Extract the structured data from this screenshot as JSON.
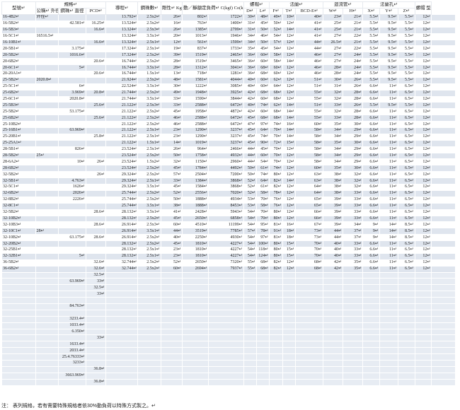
{
  "headers": {
    "model": "型號↵",
    "spec": "規格↵",
    "ball_dia": "鋼珠↵\n直徑",
    "shaft_dia": "公稱↵\n外徑↵",
    "pcd": "PCD↵",
    "lead": "導程↵",
    "turns": "鋼珠數↵",
    "stiffness": "剛性↵\nKgf/μm↵\nK↵",
    "load": "動／靜額定負荷↵\nC(kgf) Co(kgf)↵",
    "nut": "螺帽↵",
    "flange": "法蘭↵",
    "wiper": "迴流管↵",
    "holes": "法蘭孔↵",
    "notes": "螺帽\n型長↵",
    "sub": [
      "D↵",
      "L↵",
      "F↵",
      "T↵",
      "BCD-E↵",
      "W↵",
      "H↵",
      "X↵",
      "Y↵",
      "Z↵",
      "S↵"
    ]
  },
  "rows": [
    {
      "model": "16-4B2↵",
      "c1": "外徑↵",
      "c2": "",
      "c3": "",
      "lead": "13.792↵",
      "turns": "2.5x2↵",
      "k": "26↵",
      "C": "802↵",
      "Co": "1722↵",
      "D": "30↵",
      "L": "48↵",
      "F": "49↵",
      "T": "10↵",
      "BCD": "40↵",
      "W": "23↵",
      "H": "21↵",
      "X": "5.5↵",
      "Y": "9.5↵",
      "Z": "5.5↵",
      "S": "12↵"
    },
    {
      "model": "16-5B2↵",
      "c1": "",
      "c2": "42.581↵",
      "c3": "16.25↵",
      "lead": "13.524↵",
      "turns": "2.5x2↵",
      "k": "16↵",
      "C": "763↵",
      "Co": "1400↵",
      "D": "31↵",
      "L": "45↵",
      "F": "50↵",
      "T": "12↵",
      "BCD": "41↵",
      "W": "25↵",
      "H": "21↵",
      "X": "5.5↵",
      "Y": "9.5↵",
      "Z": "5.5↵",
      "S": "12↵"
    },
    {
      "model": "16-5B3↵",
      "c1": "",
      "c2": "",
      "c3": "16.6↵",
      "lead": "13.324↵",
      "turns": "2.5x3↵",
      "k": "26↵",
      "C": "1385↵",
      "Co": "2799↵",
      "D": "31↵",
      "L": "50↵",
      "F": "52↵",
      "T": "14↵",
      "BCD": "41↵",
      "W": "25↵",
      "H": "21↵",
      "X": "5.5↵",
      "Y": "9.5↵",
      "Z": "5.5↵",
      "S": "12↵"
    },
    {
      "model": "16-5C1↵",
      "c1": "16516.5↵",
      "c2": "",
      "c3": "",
      "lead": "13.324↵",
      "turns": "3.5x1↵",
      "k": "20↵",
      "C": "1013↵",
      "Co": "1946↵",
      "D": "34↵",
      "L": "46↵",
      "F": "54↵",
      "T": "12↵",
      "BCD": "41↵",
      "W": "27↵",
      "H": "22↵",
      "X": "5.5↵",
      "Y": "9.5↵",
      "Z": "5.5↵",
      "S": "12↵"
    },
    {
      "model": "16-10B1↵",
      "c1": "",
      "c2": "",
      "c3": "16.6↵",
      "lead": "13.324↵",
      "turns": "2.5x1↵",
      "k": "12↵",
      "C": "561↵",
      "Co": "1599↵",
      "D": "34↵",
      "L": "50↵",
      "F": "57↵",
      "T": "12↵",
      "BCD": "44↵",
      "W": "26.5↵",
      "H": "21↵",
      "X": "5.5↵",
      "Y": "9.5↵",
      "Z": "5.5↵",
      "S": "12↵"
    },
    {
      "model": "20-5B1↵",
      "c1": "",
      "c2": "3.175↵",
      "c3": "",
      "lead": "17.324↵",
      "turns": "2.5x1↵",
      "k": "19↵",
      "C": "837↵",
      "Co": "1733↵",
      "D": "35↵",
      "L": "45↵",
      "F": "54↵",
      "T": "12↵",
      "BCD": "44↵",
      "W": "27↵",
      "H": "22↵",
      "X": "5.5↵",
      "Y": "9.5↵",
      "Z": "5.5↵",
      "S": "12↵"
    },
    {
      "model": "20-5B2↵",
      "c1": "",
      "c2": "1016.6↵",
      "c3": "",
      "lead": "17.324↵",
      "turns": "2.5x2↵",
      "k": "39↵",
      "C": "1519↵",
      "Co": "2465↵",
      "D": "36↵",
      "L": "60↵",
      "F": "58↵",
      "T": "12↵",
      "BCD": "46↵",
      "W": "27↵",
      "H": "24↵",
      "X": "5.5↵",
      "Y": "9.5↵",
      "Z": "5.5↵",
      "S": "12↵"
    },
    {
      "model": "20-6B2↵",
      "c1": "",
      "c2": "",
      "c3": "20.6↵",
      "lead": "16.744↵",
      "turns": "2.5x2↵",
      "k": "28↵",
      "C": "1519↵",
      "Co": "3465↵",
      "D": "36↵",
      "L": "60↵",
      "F": "58↵",
      "T": "14↵",
      "BCD": "46↵",
      "W": "27↵",
      "H": "24↵",
      "X": "5.5↵",
      "Y": "9.5↵",
      "Z": "5.5↵",
      "S": "12↵"
    },
    {
      "model": "20-6C1↵",
      "c1": "",
      "c2": "5↵",
      "c3": "",
      "lead": "16.744↵",
      "turns": "3.5x1↵",
      "k": "28↵",
      "C": "1312↵",
      "Co": "3041↵",
      "D": "36↵",
      "L": "68↵",
      "F": "60↵",
      "T": "12↵",
      "BCD": "46↵",
      "W": "28↵",
      "H": "24↵",
      "X": "5.5↵",
      "Y": "9.5↵",
      "Z": "5.5↵",
      "S": "12↵"
    },
    {
      "model": "20-20A1↵",
      "c1": "",
      "c2": "",
      "c3": "20.6↵",
      "lead": "16.744↵",
      "turns": "1.5x1↵",
      "k": "13↵",
      "C": "718↵",
      "Co": "1281↵",
      "D": "36↵",
      "L": "68↵",
      "F": "60↵",
      "T": "12↵",
      "BCD": "46↵",
      "W": "28↵",
      "H": "24↵",
      "X": "5.5↵",
      "Y": "9.5↵",
      "Z": "5.5↵",
      "S": "12↵"
    },
    {
      "model": "25-5B2↵",
      "c1": "2020.8↵",
      "c2": "",
      "c3": "",
      "lead": "21.924↵",
      "turns": "2.5x2↵",
      "k": "48↵",
      "C": "1581↵",
      "Co": "4044↵",
      "D": "40↵",
      "L": "60↵",
      "F": "62↵",
      "T": "12↵",
      "BCD": "51↵",
      "W": "30↵",
      "H": "26↵",
      "X": "5.5↵",
      "Y": "9.5↵",
      "Z": "5.5↵",
      "S": "12↵"
    },
    {
      "model": "25-5C1↵",
      "c1": "",
      "c2": "6↵",
      "c3": "",
      "lead": "22.524↵",
      "turns": "3.5x1↵",
      "k": "30↵",
      "C": "1222↵",
      "Co": "3085↵",
      "D": "40↵",
      "L": "60↵",
      "F": "64↵",
      "T": "12↵",
      "BCD": "51↵",
      "W": "31↵",
      "H": "26↵",
      "X": "6.6↵",
      "Y": "11↵",
      "Z": "6.5↵",
      "S": "12↵"
    },
    {
      "model": "25-6B2↵",
      "c1": "",
      "c2": "3.969↵",
      "c3": "20.8↵",
      "lead": "21.744↵",
      "turns": "2.5x2↵",
      "k": "49↵",
      "C": "1948↵",
      "Co": "3925↵",
      "D": "42↵",
      "L": "68↵",
      "F": "68↵",
      "T": "12↵",
      "BCD": "55↵",
      "W": "32↵",
      "H": "28↵",
      "X": "6.6↵",
      "Y": "11↵",
      "Z": "6.5↵",
      "S": "12↵"
    },
    {
      "model": "25-6C1↵",
      "c1": "",
      "c2": "2020.8↵",
      "c3": "",
      "lead": "21.744↵",
      "turns": "3.5x1↵",
      "k": "33↵",
      "C": "1590↵",
      "Co": "3844↵",
      "D": "42↵",
      "L": "60↵",
      "F": "68↵",
      "T": "12↵",
      "BCD": "55↵",
      "W": "32↵",
      "H": "28↵",
      "X": "6.6↵",
      "Y": "11↵",
      "Z": "6.5↵",
      "S": "12↵"
    },
    {
      "model": "25-5B3↵",
      "c1": "",
      "c2": "",
      "c3": "25.6↵",
      "lead": "21.122↵",
      "turns": "2.5x3↵",
      "k": "33↵",
      "C": "2588↵",
      "Co": "6472↵",
      "D": "40↵",
      "L": "74↵",
      "F": "62↵",
      "T": "14↵",
      "BCD": "51↵",
      "W": "33↵",
      "H": "26↵",
      "X": "5.5↵",
      "Y": "9.5↵",
      "Z": "5.5↵",
      "S": "12↵"
    },
    {
      "model": "25-5B2↵",
      "c1": "",
      "c2": "53.175↵",
      "c3": "",
      "lead": "21.122↵",
      "turns": "2.5x2↵",
      "k": "45↵",
      "C": "1958↵",
      "Co": "4872↵",
      "D": "42↵",
      "L": "60↵",
      "F": "68↵",
      "T": "14↵",
      "BCD": "55↵",
      "W": "32↵",
      "H": "28↵",
      "X": "6.6↵",
      "Y": "11↵",
      "Z": "6.5↵",
      "S": "12↵"
    },
    {
      "model": "25-6B2↵",
      "c1": "",
      "c2": "",
      "c3": "25.6↵",
      "lead": "21.122↵",
      "turns": "2.5x2↵",
      "k": "46↵",
      "C": "2588↵",
      "Co": "6472↵",
      "D": "45↵",
      "L": "68↵",
      "F": "68↵",
      "T": "14↵",
      "BCD": "55↵",
      "W": "33↵",
      "H": "28↵",
      "X": "6.6↵",
      "Y": "11↵",
      "Z": "6.5↵",
      "S": "12↵"
    },
    {
      "model": "25-10B2↵",
      "c1": "",
      "c2": "",
      "c3": "",
      "lead": "21.122↵",
      "turns": "2.5x2↵",
      "k": "46↵",
      "C": "2588↵",
      "Co": "6472↵",
      "D": "47↵",
      "L": "97↵",
      "F": "74↵",
      "T": "16↵",
      "BCD": "60↵",
      "W": "35↵",
      "H": "30↵",
      "X": "6.6↵",
      "Y": "11↵",
      "Z": "6.5↵",
      "S": "12↵"
    },
    {
      "model": "25-16B1↵",
      "c1": "",
      "c2": "63.969↵",
      "c3": "",
      "lead": "21.122↵",
      "turns": "2.5x1↵",
      "k": "23↵",
      "C": "1290↵",
      "Co": "3237↵",
      "D": "45↵",
      "L": "64↵",
      "F": "70↵",
      "T": "14↵",
      "BCD": "58↵",
      "W": "34↵",
      "H": "29↵",
      "X": "6.6↵",
      "Y": "11↵",
      "Z": "6.5↵",
      "S": "12↵"
    },
    {
      "model": "25-20B1↵",
      "c1": "",
      "c2": "",
      "c3": "25.8↵",
      "lead": "21.122↵",
      "turns": "2.5x1↵",
      "k": "23↵",
      "C": "1290↵",
      "Co": "3237↵",
      "D": "45↵",
      "L": "74↵",
      "F": "70↵",
      "T": "14↵",
      "BCD": "58↵",
      "W": "34↵",
      "H": "29↵",
      "X": "6.6↵",
      "Y": "11↵",
      "Z": "6.5↵",
      "S": "12↵"
    },
    {
      "model": "25-25A1↵",
      "c1": "",
      "c2": "",
      "c3": "",
      "lead": "21.122↵",
      "turns": "1.5x1↵",
      "k": "14↵",
      "C": "1019↵",
      "Co": "3237↵",
      "D": "45↵",
      "L": "90↵",
      "F": "72↵",
      "T": "15↵",
      "BCD": "58↵",
      "W": "35↵",
      "H": "30↵",
      "X": "6.6↵",
      "Y": "11↵",
      "Z": "6.5↵",
      "S": "12↵"
    },
    {
      "model": "28-5B1↵",
      "c1": "",
      "c2": "826↵",
      "c3": "",
      "lead": "23.524↵",
      "turns": "2.5x1↵",
      "k": "26↵",
      "C": "964↵",
      "Co": "2466↵",
      "D": "44↵",
      "L": "45↵",
      "F": "70↵",
      "T": "12↵",
      "BCD": "58↵",
      "W": "34↵",
      "H": "29↵",
      "X": "6.6↵",
      "Y": "11↵",
      "Z": "6.5↵",
      "S": "12↵"
    },
    {
      "model": "28-5B2↵",
      "c1": "25↵",
      "c2": "",
      "c3": "",
      "lead": "23.524↵",
      "turns": "2.5x2↵",
      "k": "50↵",
      "C": "1758↵",
      "Co": "4932↵",
      "D": "44↵",
      "L": "60↵",
      "F": "70↵",
      "T": "12↵",
      "BCD": "58↵",
      "W": "34↵",
      "H": "29↵",
      "X": "6.6↵",
      "Y": "11↵",
      "Z": "6.5↵",
      "S": "12↵"
    },
    {
      "model": "28-6A2↵",
      "c1": "",
      "c2": "10↵",
      "c3": "26↵",
      "lead": "23.524↵",
      "turns": "1.5x2↵",
      "k": "32↵",
      "C": "1150↵",
      "Co": "2960↵",
      "D": "44↵",
      "L": "54↵",
      "F": "70↵",
      "T": "12↵",
      "BCD": "58↵",
      "W": "34↵",
      "H": "29↵",
      "X": "6.6↵",
      "Y": "11↵",
      "Z": "6.5↵",
      "S": "12↵"
    },
    {
      "model": "28-6B2↵",
      "c1": "",
      "c2": "",
      "c3": "",
      "lead": "23.524↵",
      "turns": "2.5x2↵",
      "k": "45↵",
      "C": "1784↵",
      "Co": "4492↵",
      "D": "50↵",
      "L": "61↵",
      "F": "74↵",
      "T": "12↵",
      "BCD": "60↵",
      "W": "35↵",
      "H": "30↵",
      "X": "6.6↵",
      "Y": "11↵",
      "Z": "6.5↵",
      "S": "12↵"
    },
    {
      "model": "32-5B2↵",
      "c1": "",
      "c2": "",
      "c3": "26↵",
      "lead": "29.324↵",
      "turns": "2.5x2↵",
      "k": "57↵",
      "C": "2504↵",
      "Co": "7200↵",
      "D": "50↵",
      "L": "74↵",
      "F": "80↵",
      "T": "12↵",
      "BCD": "63↵",
      "W": "38↵",
      "H": "32↵",
      "X": "6.6↵",
      "Y": "11↵",
      "Z": "6.5↵",
      "S": "12↵"
    },
    {
      "model": "32-5B1↵",
      "c1": "",
      "c2": "4.763↵",
      "c3": "",
      "lead": "29.324↵",
      "turns": "2.5x1↵",
      "k": "33↵",
      "C": "1384↵",
      "Co": "3868↵",
      "D": "52↵",
      "L": "64↵",
      "F": "82↵",
      "T": "14↵",
      "BCD": "63↵",
      "W": "38↵",
      "H": "32↵",
      "X": "6.6↵",
      "Y": "11↵",
      "Z": "6.5↵",
      "S": "12↵"
    },
    {
      "model": "32-5C1↵",
      "c1": "",
      "c2": "1626↵",
      "c3": "",
      "lead": "29.324↵",
      "turns": "3.5x1↵",
      "k": "45↵",
      "C": "1584↵",
      "Co": "3868↵",
      "D": "52↵",
      "L": "61↵",
      "F": "82↵",
      "T": "12↵",
      "BCD": "64↵",
      "W": "38↵",
      "H": "32↵",
      "X": "6.6↵",
      "Y": "11↵",
      "Z": "6.5↵",
      "S": "12↵"
    },
    {
      "model": "32-6B2↵",
      "c1": "",
      "c2": "2026↵",
      "c3": "",
      "lead": "25.744↵",
      "turns": "2.5x2↵",
      "k": "52↵",
      "C": "2556↵",
      "Co": "7020↵",
      "D": "52↵",
      "L": "58↵",
      "F": "78↵",
      "T": "12↵",
      "BCD": "64↵",
      "W": "38↵",
      "H": "33↵",
      "X": "6.6↵",
      "Y": "11↵",
      "Z": "6.5↵",
      "S": "12↵"
    },
    {
      "model": "32-8B2↵",
      "c1": "",
      "c2": "2226↵",
      "c3": "",
      "lead": "25.744↵",
      "turns": "2.5x2↵",
      "k": "50↵",
      "C": "1888↵",
      "Co": "4934↵",
      "D": "53↵",
      "L": "70↵",
      "F": "76↵",
      "T": "12↵",
      "BCD": "65↵",
      "W": "39↵",
      "H": "33↵",
      "X": "6.6↵",
      "Y": "11↵",
      "Z": "6.5↵",
      "S": "12↵"
    },
    {
      "model": "32-8C1↵",
      "c1": "",
      "c2": "",
      "c3": "",
      "lead": "25.744↵",
      "turns": "3.5x1↵",
      "k": "38↵",
      "C": "1888↵",
      "Co": "8453↵",
      "D": "53↵",
      "L": "58↵",
      "F": "76↵",
      "T": "12↵",
      "BCD": "65↵",
      "W": "39↵",
      "H": "33↵",
      "X": "6.6↵",
      "Y": "11↵",
      "Z": "6.5↵",
      "S": "12↵"
    },
    {
      "model": "32-5B2↵",
      "c1": "",
      "c2": "",
      "c3": "28.6↵",
      "lead": "28.132↵",
      "turns": "3.5x1↵",
      "k": "41↵",
      "C": "2428↵",
      "Co": "5943↵",
      "D": "54↵",
      "L": "70↵",
      "F": "80↵",
      "T": "12↵",
      "BCD": "66↵",
      "W": "39↵",
      "H": "33↵",
      "X": "6.6↵",
      "Y": "11↵",
      "Z": "6.5↵",
      "S": "12↵"
    },
    {
      "model": "32-10B2↵",
      "c1": "",
      "c2": "",
      "c3": "",
      "lead": "28.132↵",
      "turns": "2.5x2↵",
      "k": "45↵",
      "C": "2650↵",
      "Co": "6858↵",
      "D": "54↵",
      "L": "70↵",
      "F": "80↵",
      "T": "12↵",
      "BCD": "66↵",
      "W": "39↵",
      "H": "33↵",
      "X": "6.6↵",
      "Y": "11↵",
      "Z": "6.5↵",
      "S": "12↵"
    },
    {
      "model": "32-10B3↵",
      "c1": "",
      "c2": "",
      "c3": "28.6↵",
      "lead": "26.914↵",
      "turns": "2.5x3↵",
      "k": "60↵",
      "C": "4510↵",
      "Co": "11199↵",
      "D": "54↵",
      "L": "95↵",
      "F": "81↵",
      "T": "16↵",
      "BCD": "67↵",
      "W": "39↵",
      "H": "34↵",
      "X": "9↵",
      "Y": "14↵",
      "Z": "8.5↵",
      "S": "12↵"
    },
    {
      "model": "32-10C1↵",
      "c1": "28↵",
      "c2": "",
      "c3": "",
      "lead": "26.914↵",
      "turns": "3.5x1↵",
      "k": "44↵",
      "C": "3519↵",
      "Co": "7785↵",
      "D": "57↵",
      "L": "78↵",
      "F": "91↵",
      "T": "18↵",
      "BCD": "73↵",
      "W": "44↵",
      "H": "37↵",
      "X": "9↵",
      "Y": "14↵",
      "Z": "8.5↵",
      "S": "12↵"
    },
    {
      "model": "32-10B2↵",
      "c1": "",
      "c2": "63.175↵",
      "c3": "28.6↵",
      "lead": "26.914↵",
      "turns": "2.5x2↵",
      "k": "40↵",
      "C": "2250↵",
      "Co": "4930↵",
      "D": "54↵",
      "L": "97↵",
      "F": "81↵",
      "T": "18↵",
      "BCD": "73↵",
      "W": "44↵",
      "H": "37↵",
      "X": "9↵",
      "Y": "14↵",
      "Z": "8.5↵",
      "S": "12↵"
    },
    {
      "model": "32-20B2↵",
      "c1": "",
      "c2": "",
      "c3": "",
      "lead": "28.132↵",
      "turns": "2.5x2↵",
      "k": "45↵",
      "C": "1810↵",
      "Co": "4227↵",
      "D": "54↵",
      "L": "100↵",
      "F": "80↵",
      "T": "15↵",
      "BCD": "70↵",
      "W": "40↵",
      "H": "33↵",
      "X": "6.6↵",
      "Y": "11↵",
      "Z": "6.5↵",
      "S": "12↵"
    },
    {
      "model": "32-25B1↵",
      "c1": "",
      "c2": "",
      "c3": "",
      "lead": "28.132↵",
      "turns": "2.5x1↵",
      "k": "23↵",
      "C": "1810↵",
      "Co": "4227↵",
      "D": "54↵",
      "L": "118↵",
      "F": "80↵",
      "T": "15↵",
      "BCD": "70↵",
      "W": "40↵",
      "H": "33↵",
      "X": "6.6↵",
      "Y": "11↵",
      "Z": "6.5↵",
      "S": "12↵"
    },
    {
      "model": "32-32B1↵",
      "c1": "",
      "c2": "5↵",
      "c3": "",
      "lead": "28.132↵",
      "turns": "2.5x1↵",
      "k": "23↵",
      "C": "1810↵",
      "Co": "4227↵",
      "D": "54↵",
      "L": "124↵",
      "F": "80↵",
      "T": "15↵",
      "BCD": "70↵",
      "W": "40↵",
      "H": "33↵",
      "X": "6.6↵",
      "Y": "11↵",
      "Z": "6.5↵",
      "S": "12↵"
    },
    {
      "model": "36-5B2↵",
      "c1": "",
      "c2": "",
      "c3": "32.6↵",
      "lead": "32.744↵",
      "turns": "2.5x2↵",
      "k": "52↵",
      "C": "2650↵",
      "Co": "7320↵",
      "D": "55↵",
      "L": "68↵",
      "F": "82↵",
      "T": "12↵",
      "BCD": "68↵",
      "W": "42↵",
      "H": "35↵",
      "X": "6.6↵",
      "Y": "11↵",
      "Z": "6.5↵",
      "S": "12↵"
    },
    {
      "model": "36-6B2↵",
      "c1": "",
      "c2": "",
      "c3": "32.6↵",
      "lead": "32.744↵",
      "turns": "2.5x2↵",
      "k": "60↵",
      "C": "2694↵",
      "Co": "7937↵",
      "D": "55↵",
      "L": "68↵",
      "F": "82↵",
      "T": "12↵",
      "BCD": "68↵",
      "W": "42↵",
      "H": "35↵",
      "X": "6.6↵",
      "Y": "11↵",
      "Z": "6.5↵",
      "S": "12↵"
    }
  ],
  "tail_rows": [
    {
      "c2": "",
      "c3": "32.5↵"
    },
    {
      "c2": "63.969↵",
      "c3": "33↵"
    },
    {
      "c2": "",
      "c3": "32.5↵"
    },
    {
      "c2": "",
      "c3": "33↵"
    },
    {
      "c2": "",
      "c3": ""
    },
    {
      "c2": "84.763↵",
      "c3": ""
    },
    {
      "c2": "",
      "c3": ""
    },
    {
      "c2": "3233.4↵",
      "c3": ""
    },
    {
      "c2": "1033.4↵",
      "c3": ""
    },
    {
      "c2": "6.350↵",
      "c3": ""
    },
    {
      "c2": "",
      "c3": "33↵"
    },
    {
      "c2": "1633.4↵",
      "c3": ""
    },
    {
      "c2": "2033.4↵",
      "c3": ""
    },
    {
      "c2": "25.4.76333↵",
      "c3": ""
    },
    {
      "c2": "3233↵",
      "c3": ""
    },
    {
      "c2": "",
      "c3": "36.8↵"
    },
    {
      "c2": "3663.969↵",
      "c3": ""
    },
    {
      "c2": "",
      "c3": "36.8↵"
    }
  ],
  "footnote": "注： 表列規格，若有需要特殊規格者依30%動負荷以特殊方式製之。↵"
}
